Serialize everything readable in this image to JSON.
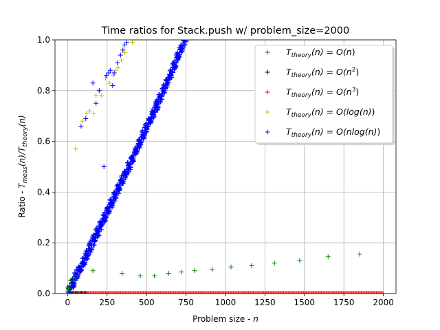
{
  "chart_data": {
    "type": "scatter",
    "title": "Time ratios for Stack.push w/ problem_size=2000",
    "xlabel": "Problem size - n",
    "ylabel": "Ratio - T_meas(n)/T_theory(n)",
    "xlim": [
      -80,
      2080
    ],
    "ylim": [
      0,
      1.0
    ],
    "xticks": [
      0,
      250,
      500,
      750,
      1000,
      1250,
      1500,
      1750,
      2000
    ],
    "yticks": [
      0.0,
      0.2,
      0.4,
      0.6,
      0.8,
      1.0
    ],
    "xtick_labels": [
      "0",
      "250",
      "500",
      "750",
      "1000",
      "1250",
      "1500",
      "1750",
      "2000"
    ],
    "ytick_labels": [
      "0.0",
      "0.2",
      "0.4",
      "0.6",
      "0.8",
      "1.0"
    ],
    "grid": true,
    "marker": "+",
    "legend_position": "top-right",
    "series": [
      {
        "name": "T_theory(n) = O(n)",
        "color": "#008000",
        "x": [
          0,
          2,
          5,
          10,
          20,
          35,
          60,
          160,
          345,
          460,
          550,
          640,
          720,
          805,
          915,
          1035,
          1165,
          1310,
          1470,
          1650,
          1850
        ],
        "y": [
          0.0,
          0.01,
          0.02,
          0.03,
          0.05,
          0.06,
          0.07,
          0.09,
          0.08,
          0.07,
          0.07,
          0.08,
          0.085,
          0.09,
          0.095,
          0.105,
          0.11,
          0.12,
          0.13,
          0.145,
          0.155
        ]
      },
      {
        "name": "T_theory(n) = O(n^2)",
        "color": "#000000",
        "x": [
          0,
          200,
          400,
          600,
          800,
          1000,
          1200,
          1400,
          1600,
          1800,
          2000
        ],
        "y": [
          0,
          0,
          0,
          0,
          0,
          0,
          0,
          0,
          0,
          0,
          0
        ]
      },
      {
        "name": "T_theory(n) = O(n^3)",
        "color": "#ff0000",
        "x": [
          0,
          100,
          200,
          300,
          400,
          500,
          600,
          700,
          800,
          900,
          1000,
          1100,
          1200,
          1300,
          1400,
          1500,
          1600,
          1700,
          1800,
          1900,
          2000
        ],
        "y": [
          0,
          0,
          0,
          0,
          0,
          0,
          0,
          0,
          0,
          0,
          0,
          0,
          0,
          0,
          0,
          0,
          0,
          0,
          0,
          0,
          0
        ]
      },
      {
        "name": "T_theory(n) = O(log(n))",
        "color": "#bfbf00",
        "x": [
          50,
          95,
          120,
          140,
          165,
          180,
          200,
          215,
          240,
          265,
          290,
          305,
          320,
          340,
          360,
          410
        ],
        "y": [
          0.57,
          0.68,
          0.71,
          0.72,
          0.71,
          0.78,
          0.8,
          0.78,
          0.85,
          0.83,
          0.86,
          0.88,
          0.89,
          0.92,
          0.95,
          0.99
        ]
      },
      {
        "name": "T_theory(n) = O(nlog(n))",
        "color": "#0000ff",
        "x": [
          85,
          115,
          160,
          180,
          200,
          230,
          245,
          260,
          270,
          285,
          295,
          315,
          335,
          350,
          360,
          375
        ],
        "y": [
          0.66,
          0.69,
          0.83,
          0.75,
          0.8,
          0.5,
          0.86,
          0.87,
          0.88,
          0.82,
          0.87,
          0.91,
          0.94,
          0.96,
          0.98,
          0.99
        ]
      }
    ],
    "dense_band": {
      "series": "T_theory(n) = O(nlog(n))",
      "color": "#0000ff",
      "x_range": [
        0,
        745
      ],
      "y_range": [
        0.0,
        1.0
      ]
    }
  },
  "legend": {
    "entries": [
      {
        "prefix": "T",
        "sub": "theory",
        "mid": "(n) = O(n",
        "sup": "",
        "suffix": ")"
      },
      {
        "prefix": "T",
        "sub": "theory",
        "mid": "(n) = O(n",
        "sup": "2",
        "suffix": ")"
      },
      {
        "prefix": "T",
        "sub": "theory",
        "mid": "(n) = O(n",
        "sup": "3",
        "suffix": ")"
      },
      {
        "prefix": "T",
        "sub": "theory",
        "mid": "(n) = O(log(n)",
        "sup": "",
        "suffix": ")"
      },
      {
        "prefix": "T",
        "sub": "theory",
        "mid": "(n) = O(nlog(n)",
        "sup": "",
        "suffix": ")"
      }
    ]
  },
  "labels": {
    "xlabel_main": "Problem size - ",
    "xlabel_var": "n",
    "ylabel_main": "Ratio - ",
    "ylabel_T1": "T",
    "ylabel_sub1": "meas",
    "ylabel_mid": "(n)/",
    "ylabel_T2": "T",
    "ylabel_sub2": "theory",
    "ylabel_end": "(n)"
  }
}
